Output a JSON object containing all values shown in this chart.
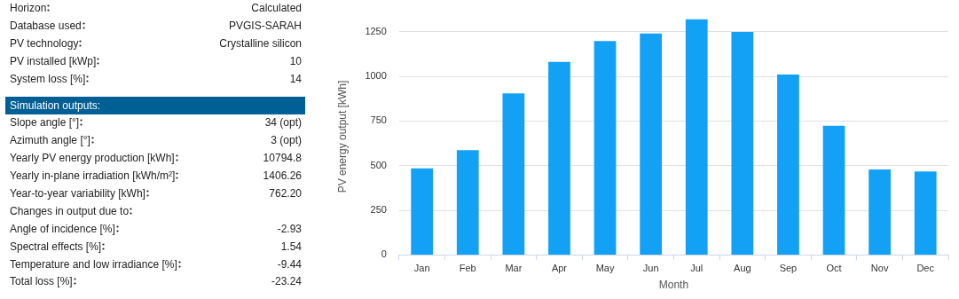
{
  "chart_data": [
    {
      "type": "other",
      "categories": [
        "Horizon",
        "Database used",
        "PV technology",
        "PV installed [kWp]",
        "System loss [%]"
      ],
      "value_labels": [
        "Calculated",
        "PVGIS-SARAH",
        "Crystalline silicon",
        "10",
        "14"
      ]
    },
    {
      "type": "other",
      "title": "Simulation outputs:",
      "categories": [
        "Slope angle [°]",
        "Azimuth angle [°]",
        "Yearly PV energy production [kWh]",
        "Yearly in-plane irradiation [kWh/m²]",
        "Year-to-year variability [kWh]",
        "Changes in output due to",
        "Angle of incidence [%]",
        "Spectral effects [%]",
        "Temperature and low irradiance [%]",
        "Total loss [%]"
      ],
      "value_labels": [
        "34 (opt)",
        "3 (opt)",
        "10794.8",
        "1406.26",
        "762.20",
        null,
        "-2.93",
        "1.54",
        "-9.44",
        "-23.24"
      ]
    },
    {
      "type": "bar",
      "xlabel": "Month",
      "ylabel": "PV energy output [kWh]",
      "categories": [
        "Jan",
        "Feb",
        "Mar",
        "Apr",
        "May",
        "Jun",
        "Jul",
        "Aug",
        "Sep",
        "Oct",
        "Nov",
        "Dec"
      ],
      "values": [
        485,
        587,
        904,
        1081,
        1198,
        1240,
        1319,
        1248,
        1010,
        723,
        479,
        467
      ],
      "color": "#13a1f6",
      "ylim": [
        0,
        1325
      ],
      "yticks": [
        0,
        250,
        500,
        750,
        1000,
        1250
      ],
      "grid": "y",
      "legend": false
    }
  ]
}
